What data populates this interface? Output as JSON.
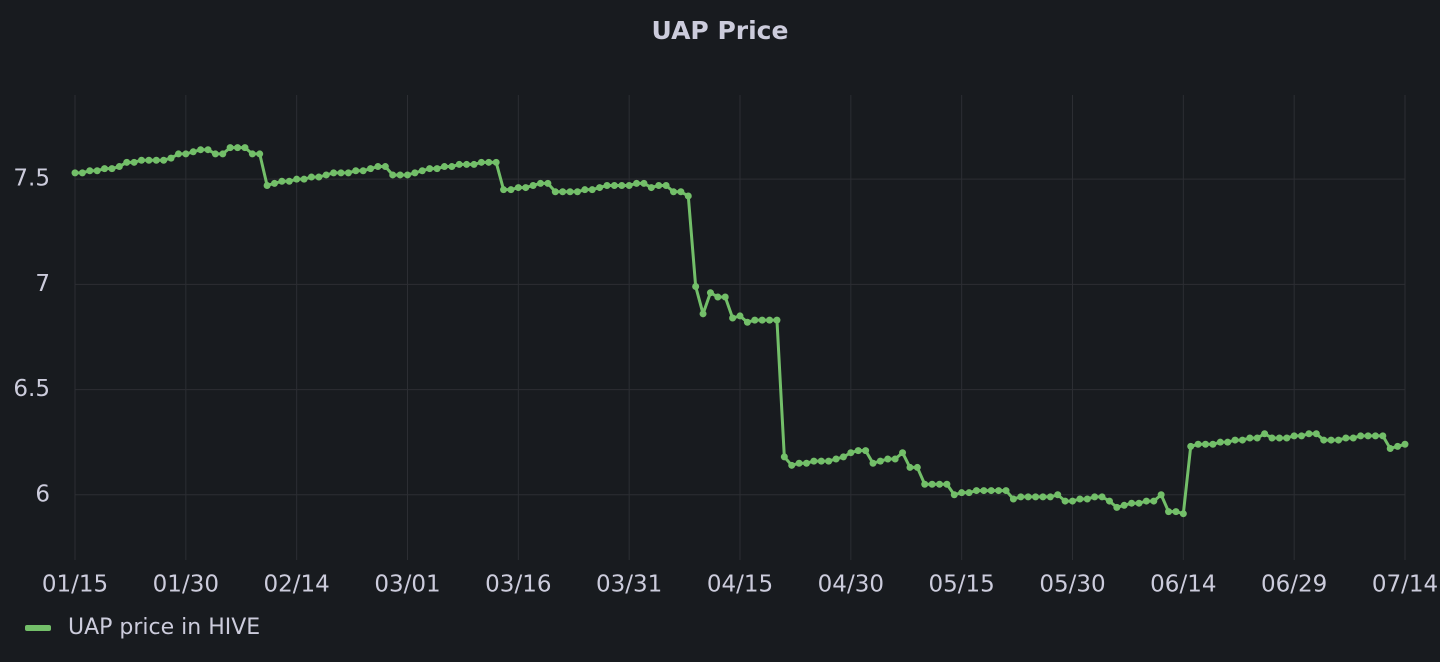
{
  "chart_data": {
    "type": "line",
    "title": "UAP Price",
    "x": [
      "01/15",
      "01/16",
      "01/17",
      "01/18",
      "01/19",
      "01/20",
      "01/21",
      "01/22",
      "01/23",
      "01/24",
      "01/25",
      "01/26",
      "01/27",
      "01/28",
      "01/29",
      "01/30",
      "01/31",
      "02/01",
      "02/02",
      "02/03",
      "02/04",
      "02/05",
      "02/06",
      "02/07",
      "02/08",
      "02/09",
      "02/10",
      "02/11",
      "02/12",
      "02/13",
      "02/14",
      "02/15",
      "02/16",
      "02/17",
      "02/18",
      "02/19",
      "02/20",
      "02/21",
      "02/22",
      "02/23",
      "02/24",
      "02/25",
      "02/26",
      "02/27",
      "02/28",
      "03/01",
      "03/02",
      "03/03",
      "03/04",
      "03/05",
      "03/06",
      "03/07",
      "03/08",
      "03/09",
      "03/10",
      "03/11",
      "03/12",
      "03/13",
      "03/14",
      "03/15",
      "03/16",
      "03/17",
      "03/18",
      "03/19",
      "03/20",
      "03/21",
      "03/22",
      "03/23",
      "03/24",
      "03/25",
      "03/26",
      "03/27",
      "03/28",
      "03/29",
      "03/30",
      "03/31",
      "04/01",
      "04/02",
      "04/03",
      "04/04",
      "04/05",
      "04/06",
      "04/07",
      "04/08",
      "04/09",
      "04/10",
      "04/11",
      "04/12",
      "04/13",
      "04/14",
      "04/15",
      "04/16",
      "04/17",
      "04/18",
      "04/19",
      "04/20",
      "04/21",
      "04/22",
      "04/23",
      "04/24",
      "04/25",
      "04/26",
      "04/27",
      "04/28",
      "04/29",
      "04/30",
      "05/01",
      "05/02",
      "05/03",
      "05/04",
      "05/05",
      "05/06",
      "05/07",
      "05/08",
      "05/09",
      "05/10",
      "05/11",
      "05/12",
      "05/13",
      "05/14",
      "05/15",
      "05/16",
      "05/17",
      "05/18",
      "05/19",
      "05/20",
      "05/21",
      "05/22",
      "05/23",
      "05/24",
      "05/25",
      "05/26",
      "05/27",
      "05/28",
      "05/29",
      "05/30",
      "05/31",
      "06/01",
      "06/02",
      "06/03",
      "06/04",
      "06/05",
      "06/06",
      "06/07",
      "06/08",
      "06/09",
      "06/10",
      "06/11",
      "06/12",
      "06/13",
      "06/14",
      "06/15",
      "06/16",
      "06/17",
      "06/18",
      "06/19",
      "06/20",
      "06/21",
      "06/22",
      "06/23",
      "06/24",
      "06/25",
      "06/26",
      "06/27",
      "06/28",
      "06/29",
      "06/30",
      "07/01",
      "07/02",
      "07/03",
      "07/04",
      "07/05",
      "07/06",
      "07/07",
      "07/08",
      "07/09",
      "07/10",
      "07/11",
      "07/12",
      "07/13",
      "07/14"
    ],
    "series": [
      {
        "name": "UAP price in HIVE",
        "color": "#73bf69",
        "values": [
          7.53,
          7.53,
          7.54,
          7.54,
          7.55,
          7.55,
          7.56,
          7.58,
          7.58,
          7.59,
          7.59,
          7.59,
          7.59,
          7.6,
          7.62,
          7.62,
          7.63,
          7.64,
          7.64,
          7.62,
          7.62,
          7.65,
          7.65,
          7.65,
          7.62,
          7.62,
          7.47,
          7.48,
          7.49,
          7.49,
          7.5,
          7.5,
          7.51,
          7.51,
          7.52,
          7.53,
          7.53,
          7.53,
          7.54,
          7.54,
          7.55,
          7.56,
          7.56,
          7.52,
          7.52,
          7.52,
          7.53,
          7.54,
          7.55,
          7.55,
          7.56,
          7.56,
          7.57,
          7.57,
          7.57,
          7.58,
          7.58,
          7.58,
          7.45,
          7.45,
          7.46,
          7.46,
          7.47,
          7.48,
          7.48,
          7.44,
          7.44,
          7.44,
          7.44,
          7.45,
          7.45,
          7.46,
          7.47,
          7.47,
          7.47,
          7.47,
          7.48,
          7.48,
          7.46,
          7.47,
          7.47,
          7.44,
          7.44,
          7.42,
          6.99,
          6.86,
          6.96,
          6.94,
          6.94,
          6.84,
          6.85,
          6.82,
          6.83,
          6.83,
          6.83,
          6.83,
          6.18,
          6.14,
          6.15,
          6.15,
          6.16,
          6.16,
          6.16,
          6.17,
          6.18,
          6.2,
          6.21,
          6.21,
          6.15,
          6.16,
          6.17,
          6.17,
          6.2,
          6.13,
          6.13,
          6.05,
          6.05,
          6.05,
          6.05,
          6.0,
          6.01,
          6.01,
          6.02,
          6.02,
          6.02,
          6.02,
          6.02,
          5.98,
          5.99,
          5.99,
          5.99,
          5.99,
          5.99,
          6.0,
          5.97,
          5.97,
          5.98,
          5.98,
          5.99,
          5.99,
          5.97,
          5.94,
          5.95,
          5.96,
          5.96,
          5.97,
          5.97,
          6.0,
          5.92,
          5.92,
          5.91,
          6.23,
          6.24,
          6.24,
          6.24,
          6.25,
          6.25,
          6.26,
          6.26,
          6.27,
          6.27,
          6.29,
          6.27,
          6.27,
          6.27,
          6.28,
          6.28,
          6.29,
          6.29,
          6.26,
          6.26,
          6.26,
          6.27,
          6.27,
          6.28,
          6.28,
          6.28,
          6.28,
          6.22,
          6.23,
          6.24
        ]
      }
    ],
    "xlim": [
      "01/15",
      "07/14"
    ],
    "xticks": [
      "01/15",
      "01/30",
      "02/14",
      "03/01",
      "03/16",
      "03/31",
      "04/15",
      "04/30",
      "05/15",
      "05/30",
      "06/14",
      "06/29",
      "07/14"
    ],
    "ylim": [
      5.69,
      7.9
    ],
    "yticks": [
      6,
      6.5,
      7,
      7.5
    ],
    "grid": true,
    "legend": "bottom-left"
  }
}
